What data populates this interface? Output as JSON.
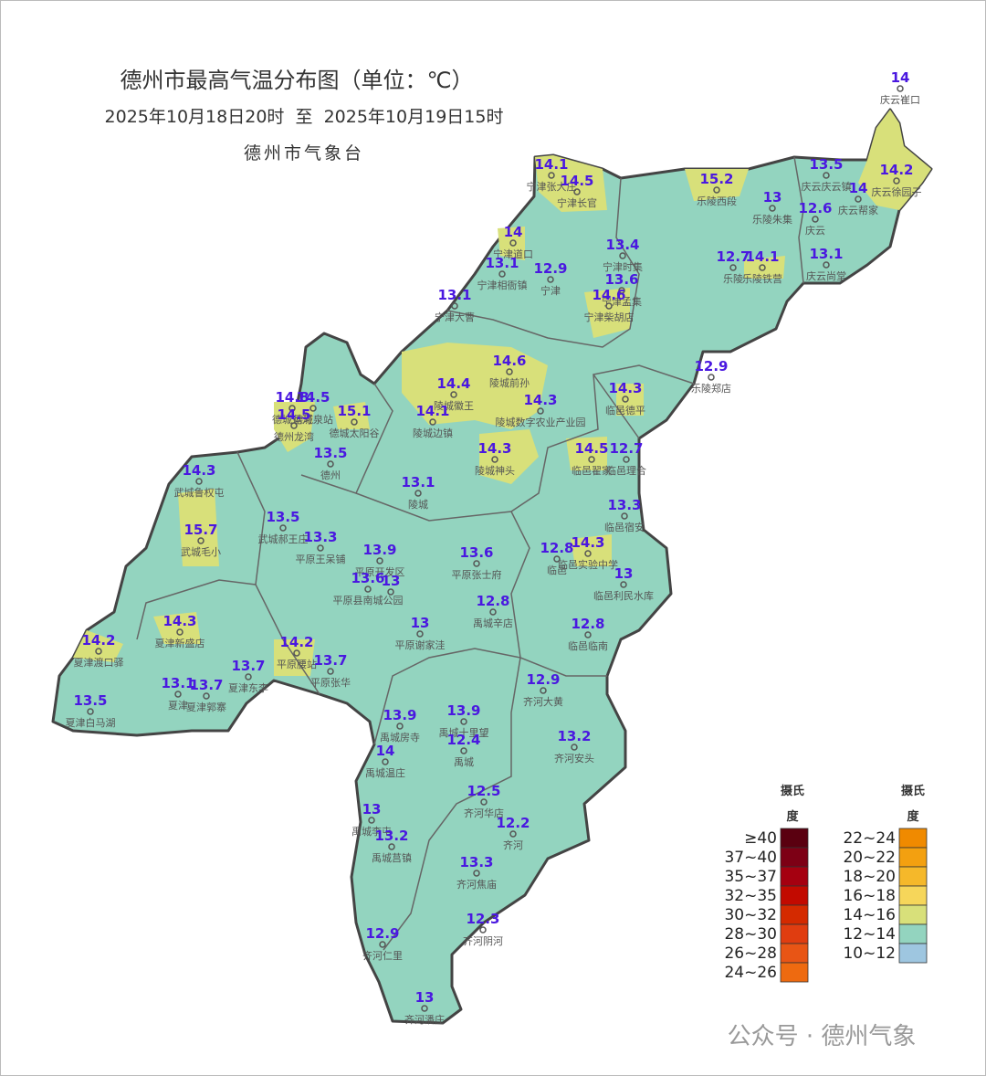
{
  "header": {
    "title": "德州市最高气温分布图（单位：℃）",
    "time_range": "2025年10月18日20时  至  2025年10月19日15时",
    "agency": "德州市气象台"
  },
  "stations": [
    {
      "name": "庆云崔口",
      "value": 14
    },
    {
      "name": "宁津张大庄",
      "value": 14.1
    },
    {
      "name": "宁津长官",
      "value": 14.5
    },
    {
      "name": "乐陵西段",
      "value": 15.2
    },
    {
      "name": "庆云庆云镇",
      "value": 13.5
    },
    {
      "name": "庆云帮家",
      "value": 14
    },
    {
      "name": "庆云徐园子",
      "value": 14.2
    },
    {
      "name": "乐陵朱集",
      "value": 13
    },
    {
      "name": "庆云",
      "value": 12.6
    },
    {
      "name": "宁津道口",
      "value": 14
    },
    {
      "name": "宁津相衙镇",
      "value": 13.1
    },
    {
      "name": "宁津",
      "value": 12.9
    },
    {
      "name": "宁津时集",
      "value": 13.4
    },
    {
      "name": "宁津孟集",
      "value": 13.6
    },
    {
      "name": "宁津柴胡店",
      "value": 14.6
    },
    {
      "name": "乐陵",
      "value": 12.7
    },
    {
      "name": "乐陵铁营",
      "value": 14.1
    },
    {
      "name": "庆云尚堂",
      "value": 13.1
    },
    {
      "name": "宁津大曹",
      "value": 13.1
    },
    {
      "name": "陵城前孙",
      "value": 14.6
    },
    {
      "name": "乐陵郑店",
      "value": 12.9
    },
    {
      "name": "陵城徽王",
      "value": 14.4
    },
    {
      "name": "陵城数字农业产业园",
      "value": 14.3
    },
    {
      "name": "陵城边镇",
      "value": 14.1
    },
    {
      "name": "临邑德平",
      "value": 14.3
    },
    {
      "name": "德城运河",
      "value": 14.8
    },
    {
      "name": "德城泉站",
      "value": 14.5
    },
    {
      "name": "德州龙湾",
      "value": 14.5
    },
    {
      "name": "德城太阳谷",
      "value": 15.1
    },
    {
      "name": "陵城神头",
      "value": 14.3
    },
    {
      "name": "临邑翟家",
      "value": 14.5
    },
    {
      "name": "临邑理合",
      "value": 12.7
    },
    {
      "name": "德州",
      "value": 13.5
    },
    {
      "name": "武城鲁权屯",
      "value": 14.3
    },
    {
      "name": "陵城",
      "value": 13.1
    },
    {
      "name": "临邑宿安",
      "value": 13.3
    },
    {
      "name": "武城毛小",
      "value": 15.7
    },
    {
      "name": "武城郝王庄",
      "value": 13.5
    },
    {
      "name": "平原王呆铺",
      "value": 13.3
    },
    {
      "name": "平原开发区",
      "value": 13.9
    },
    {
      "name": "平原张士府",
      "value": 13.6
    },
    {
      "name": "临邑",
      "value": 12.8
    },
    {
      "name": "临邑实验中学",
      "value": 14.3
    },
    {
      "name": "平原县南城公园",
      "value": 13.6
    },
    {
      "name": null,
      "value": 13
    },
    {
      "name": "临邑利民水库",
      "value": 13
    },
    {
      "name": "禹城辛店",
      "value": 12.8
    },
    {
      "name": "平原谢家洼",
      "value": 13
    },
    {
      "name": "夏津新盛店",
      "value": 14.3
    },
    {
      "name": "临邑临南",
      "value": 12.8
    },
    {
      "name": "夏津渡口驿",
      "value": 14.2
    },
    {
      "name": "平原腰站",
      "value": 14.2
    },
    {
      "name": "平原张华",
      "value": 13.7
    },
    {
      "name": "夏津东李",
      "value": 13.7
    },
    {
      "name": "夏津",
      "value": 13.1
    },
    {
      "name": "夏津郭寨",
      "value": 13.7
    },
    {
      "name": "齐河大黄",
      "value": 12.9
    },
    {
      "name": "夏津白马湖",
      "value": 13.5
    },
    {
      "name": "禹城房寺",
      "value": 13.9
    },
    {
      "name": "禹城十里望",
      "value": 13.9
    },
    {
      "name": "禹城",
      "value": 12.4
    },
    {
      "name": "齐河安头",
      "value": 13.2
    },
    {
      "name": "禹城温庄",
      "value": 14
    },
    {
      "name": "齐河华店",
      "value": 12.5
    },
    {
      "name": "禹城李屯",
      "value": 13
    },
    {
      "name": "齐河",
      "value": 12.2
    },
    {
      "name": "禹城莒镇",
      "value": 13.2
    },
    {
      "name": "齐河焦庙",
      "value": 13.3
    },
    {
      "name": "齐河阴河",
      "value": 12.3
    },
    {
      "name": "齐河仁里",
      "value": 12.9
    },
    {
      "name": "齐河潘庄",
      "value": 13
    }
  ],
  "legend": {
    "unit": "摄氏度",
    "items": [
      {
        "label": "≥40",
        "color": "#5a0010"
      },
      {
        "label": "37~40",
        "color": "#7d0015"
      },
      {
        "label": "35~37",
        "color": "#a50010"
      },
      {
        "label": "32~35",
        "color": "#c20a00"
      },
      {
        "label": "30~32",
        "color": "#d42a00"
      },
      {
        "label": "28~30",
        "color": "#e03d10"
      },
      {
        "label": "26~28",
        "color": "#e85515"
      },
      {
        "label": "24~26",
        "color": "#ee6a10"
      },
      {
        "label": "22~24",
        "color": "#f08a00"
      },
      {
        "label": "20~22",
        "color": "#f3a010"
      },
      {
        "label": "18~20",
        "color": "#f5b82a"
      },
      {
        "label": "16~18",
        "color": "#f6d65a"
      },
      {
        "label": "14~16",
        "color": "#d8e07a"
      },
      {
        "label": "12~14",
        "color": "#93d4bf"
      },
      {
        "label": "10~12",
        "color": "#9ec6e0"
      }
    ]
  },
  "watermark": "公众号 · 德州气象"
}
